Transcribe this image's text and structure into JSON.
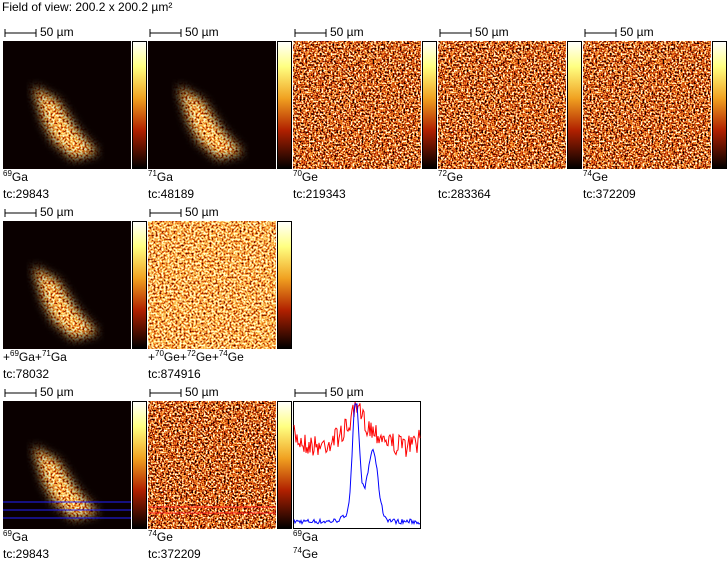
{
  "title": "Field of view: 200.2 x 200.2 µm²",
  "rows": [
    [
      {
        "kind": "ga",
        "scale": "50 µm",
        "lines": [
          [
            {
              "text": "69",
              "sup": true
            },
            {
              "text": "Ga"
            }
          ],
          [
            {
              "text": "tc:29843"
            }
          ]
        ]
      },
      {
        "kind": "ga",
        "scale": "50 µm",
        "lines": [
          [
            {
              "text": "71",
              "sup": true
            },
            {
              "text": "Ga"
            }
          ],
          [
            {
              "text": "tc:48189"
            }
          ]
        ]
      },
      {
        "kind": "ge",
        "scale": "50 µm",
        "lines": [
          [
            {
              "text": "70",
              "sup": true
            },
            {
              "text": "Ge"
            }
          ],
          [
            {
              "text": "tc:219343"
            }
          ]
        ]
      },
      {
        "kind": "ge",
        "scale": "50 µm",
        "lines": [
          [
            {
              "text": "72",
              "sup": true
            },
            {
              "text": "Ge"
            }
          ],
          [
            {
              "text": "tc:283364"
            }
          ]
        ]
      },
      {
        "kind": "ge",
        "scale": "50 µm",
        "lines": [
          [
            {
              "text": "74",
              "sup": true
            },
            {
              "text": "Ge"
            }
          ],
          [
            {
              "text": "tc:372209"
            }
          ]
        ]
      }
    ],
    [
      {
        "kind": "ga",
        "scale": "50 µm",
        "lines": [
          [
            {
              "text": "+"
            },
            {
              "text": "69",
              "sup": true
            },
            {
              "text": "Ga+"
            },
            {
              "text": "71",
              "sup": true
            },
            {
              "text": "Ga"
            }
          ],
          [
            {
              "text": "tc:78032"
            }
          ]
        ]
      },
      {
        "kind": "gebright",
        "scale": "50 µm",
        "lines": [
          [
            {
              "text": "+"
            },
            {
              "text": "70",
              "sup": true
            },
            {
              "text": "Ge+"
            },
            {
              "text": "72",
              "sup": true
            },
            {
              "text": "Ge+"
            },
            {
              "text": "74",
              "sup": true
            },
            {
              "text": "Ge"
            }
          ],
          [
            {
              "text": "tc:874916"
            }
          ]
        ]
      }
    ],
    [
      {
        "kind": "galines",
        "scale": "50 µm",
        "lines": [
          [
            {
              "text": "69",
              "sup": true
            },
            {
              "text": "Ga"
            }
          ],
          [
            {
              "text": "tc:29843"
            }
          ]
        ]
      },
      {
        "kind": "gelines",
        "scale": "50 µm",
        "lines": [
          [
            {
              "text": "74",
              "sup": true
            },
            {
              "text": "Ge"
            }
          ],
          [
            {
              "text": "tc:372209"
            }
          ]
        ]
      },
      {
        "kind": "profile",
        "scale": "50 µm",
        "lines": [
          [
            {
              "text": "69",
              "sup": true
            },
            {
              "text": "Ga"
            }
          ],
          [
            {
              "text": "74",
              "sup": true
            },
            {
              "text": "Ge"
            }
          ]
        ]
      }
    ]
  ]
}
